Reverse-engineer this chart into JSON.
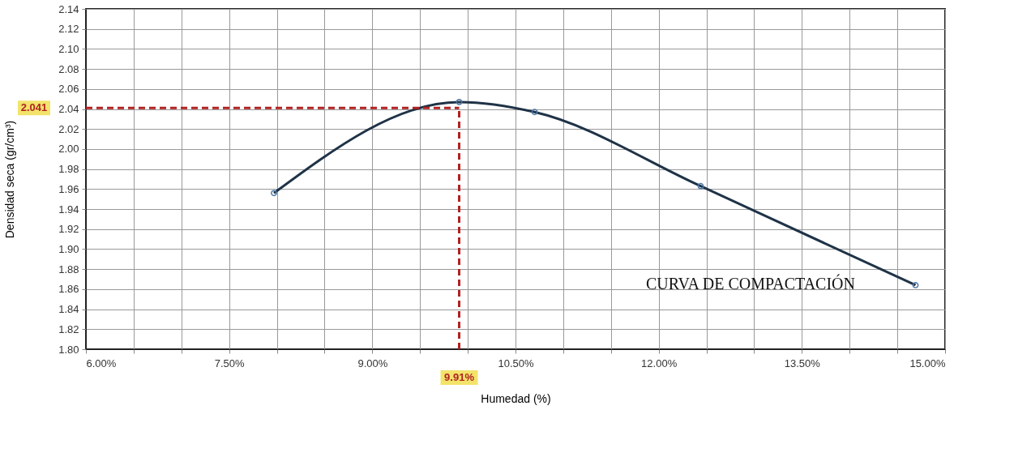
{
  "chart_data": {
    "type": "line",
    "xlabel": "Humedad (%)",
    "ylabel": "Densidad seca (gr/cm³)",
    "x": [
      7.97,
      9.91,
      10.7,
      12.44,
      14.69
    ],
    "series": [
      {
        "color": "#1f3347",
        "values": [
          1.956,
          2.047,
          2.037,
          1.963,
          1.864
        ]
      }
    ],
    "xlim": [
      6.0,
      15.0
    ],
    "xticks": [
      {
        "value": 6.0,
        "label": "6.00%"
      },
      {
        "value": 6.5,
        "label": null
      },
      {
        "value": 7.0,
        "label": null
      },
      {
        "value": 7.5,
        "label": "7.50%"
      },
      {
        "value": 8.0,
        "label": null
      },
      {
        "value": 8.5,
        "label": null
      },
      {
        "value": 9.0,
        "label": "9.00%"
      },
      {
        "value": 9.5,
        "label": null
      },
      {
        "value": 10.0,
        "label": null
      },
      {
        "value": 10.5,
        "label": "10.50%"
      },
      {
        "value": 11.0,
        "label": null
      },
      {
        "value": 11.5,
        "label": null
      },
      {
        "value": 12.0,
        "label": "12.00%"
      },
      {
        "value": 12.5,
        "label": null
      },
      {
        "value": 13.0,
        "label": null
      },
      {
        "value": 13.5,
        "label": "13.50%"
      },
      {
        "value": 14.0,
        "label": null
      },
      {
        "value": 14.5,
        "label": null
      },
      {
        "value": 15.0,
        "label": "15.00%"
      }
    ],
    "ylim": [
      1.8,
      2.14
    ],
    "yticks": [
      {
        "value": 1.8,
        "label": "1.80"
      },
      1.82,
      1.84,
      1.86,
      1.88,
      {
        "value": 1.9,
        "label": "1.90"
      },
      1.92,
      1.94,
      1.96,
      1.98,
      {
        "value": 2.0,
        "label": "2.00"
      },
      2.02,
      2.04,
      2.06,
      2.08,
      {
        "value": 2.1,
        "label": "2.10"
      },
      2.12,
      2.14
    ],
    "ref_lines": [
      {
        "axis": "y",
        "value": 2.041,
        "label": "2.041",
        "color": "#b22222",
        "line_style": "dashed"
      },
      {
        "axis": "x",
        "value": 9.91,
        "label": "9.91%",
        "color": "#b22222",
        "line_style": "dashed"
      }
    ],
    "annotations": [
      "CURVA DE COMPACTACIÓN"
    ],
    "grid": true,
    "marker": "circle",
    "line_style": "solid"
  }
}
